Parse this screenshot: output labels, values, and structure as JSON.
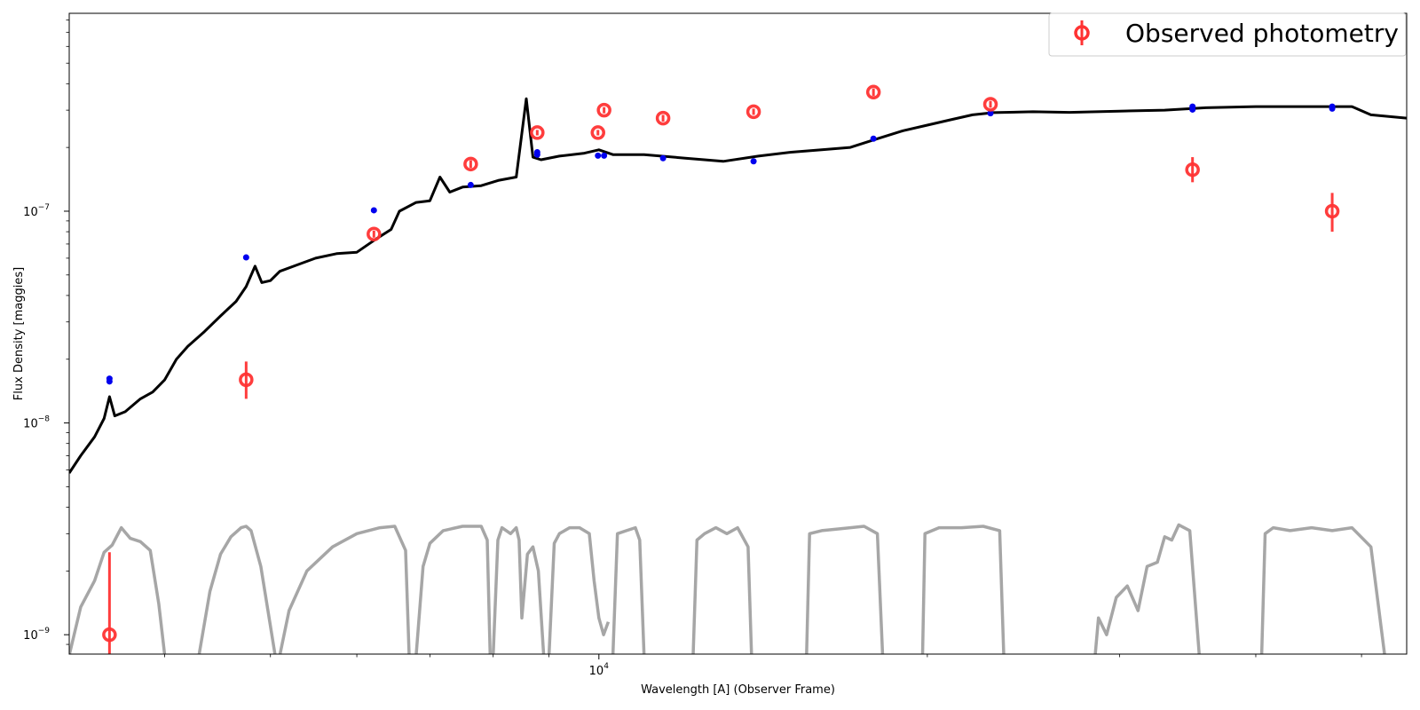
{
  "chart_data": {
    "type": "scatter",
    "xlabel": "Wavelength [A] (Observer Frame)",
    "ylabel": "Flux Density [maggies]",
    "xscale": "log",
    "yscale": "log",
    "xlim": [
      3270,
      55000
    ],
    "ylim": [
      8.1e-10,
      8.6e-07
    ],
    "x_major_ticks": [
      {
        "value": 10000,
        "base": "10",
        "exp": "4"
      }
    ],
    "y_major_ticks": [
      {
        "value": 1e-09,
        "base": "10",
        "exp": "−9"
      },
      {
        "value": 1e-08,
        "base": "10",
        "exp": "−8"
      },
      {
        "value": 1e-07,
        "base": "10",
        "exp": "−7"
      }
    ],
    "legend": {
      "location": "upper right",
      "entries": [
        "Observed photometry"
      ]
    },
    "colors": {
      "observed": "#ff3333",
      "model": "#0000ee",
      "spectrum": "#000000",
      "filters": "#a6a6a6"
    },
    "series": [
      {
        "name": "Observed photometry",
        "marker": "open-circle",
        "points": [
          {
            "x": 3560,
            "y": 1e-09,
            "ylo": 6e-10,
            "yhi": 2.45e-09
          },
          {
            "x": 4750,
            "y": 1.6e-08,
            "ylo": 1.3e-08,
            "yhi": 1.95e-08
          },
          {
            "x": 6220,
            "y": 7.8e-08,
            "ylo": 7.5e-08,
            "yhi": 8.1e-08
          },
          {
            "x": 7630,
            "y": 1.67e-07,
            "ylo": 1.6e-07,
            "yhi": 1.74e-07
          },
          {
            "x": 8780,
            "y": 2.35e-07,
            "ylo": 2.28e-07,
            "yhi": 2.42e-07
          },
          {
            "x": 9980,
            "y": 2.35e-07,
            "ylo": 2.28e-07,
            "yhi": 2.42e-07
          },
          {
            "x": 10110,
            "y": 3e-07,
            "ylo": 2.9e-07,
            "yhi": 3.1e-07
          },
          {
            "x": 11450,
            "y": 2.75e-07,
            "ylo": 2.65e-07,
            "yhi": 2.85e-07
          },
          {
            "x": 13860,
            "y": 2.95e-07,
            "ylo": 2.85e-07,
            "yhi": 3.05e-07
          },
          {
            "x": 17850,
            "y": 3.65e-07,
            "ylo": 3.5e-07,
            "yhi": 3.8e-07
          },
          {
            "x": 22850,
            "y": 3.2e-07,
            "ylo": 3.08e-07,
            "yhi": 3.32e-07
          },
          {
            "x": 35000,
            "y": 1.57e-07,
            "ylo": 1.37e-07,
            "yhi": 1.8e-07
          },
          {
            "x": 47000,
            "y": 1e-07,
            "ylo": 8e-08,
            "yhi": 1.22e-07
          }
        ]
      },
      {
        "name": "",
        "marker": "filled-dot",
        "points": [
          {
            "x": 3560,
            "y": 1.57e-08
          },
          {
            "x": 3560,
            "y": 1.62e-08
          },
          {
            "x": 4750,
            "y": 6.05e-08
          },
          {
            "x": 6220,
            "y": 1.01e-07
          },
          {
            "x": 7630,
            "y": 1.33e-07
          },
          {
            "x": 8780,
            "y": 1.85e-07
          },
          {
            "x": 8780,
            "y": 1.9e-07
          },
          {
            "x": 9980,
            "y": 1.83e-07
          },
          {
            "x": 10110,
            "y": 1.83e-07
          },
          {
            "x": 11450,
            "y": 1.78e-07
          },
          {
            "x": 13860,
            "y": 1.72e-07
          },
          {
            "x": 17850,
            "y": 2.2e-07
          },
          {
            "x": 22850,
            "y": 2.9e-07
          },
          {
            "x": 35000,
            "y": 3.02e-07
          },
          {
            "x": 35000,
            "y": 3.12e-07
          },
          {
            "x": 47000,
            "y": 3.05e-07
          },
          {
            "x": 47000,
            "y": 3.12e-07
          }
        ]
      },
      {
        "name": "",
        "marker": "line",
        "points": [
          {
            "x": 3270,
            "y": 5.8e-09
          },
          {
            "x": 3350,
            "y": 7e-09
          },
          {
            "x": 3450,
            "y": 8.6e-09
          },
          {
            "x": 3520,
            "y": 1.05e-08
          },
          {
            "x": 3560,
            "y": 1.33e-08
          },
          {
            "x": 3600,
            "y": 1.08e-08
          },
          {
            "x": 3680,
            "y": 1.13e-08
          },
          {
            "x": 3800,
            "y": 1.3e-08
          },
          {
            "x": 3900,
            "y": 1.4e-08
          },
          {
            "x": 4000,
            "y": 1.6e-08
          },
          {
            "x": 4100,
            "y": 2e-08
          },
          {
            "x": 4200,
            "y": 2.3e-08
          },
          {
            "x": 4350,
            "y": 2.7e-08
          },
          {
            "x": 4500,
            "y": 3.2e-08
          },
          {
            "x": 4650,
            "y": 3.75e-08
          },
          {
            "x": 4750,
            "y": 4.4e-08
          },
          {
            "x": 4840,
            "y": 5.5e-08
          },
          {
            "x": 4910,
            "y": 4.6e-08
          },
          {
            "x": 5000,
            "y": 4.7e-08
          },
          {
            "x": 5100,
            "y": 5.2e-08
          },
          {
            "x": 5300,
            "y": 5.6e-08
          },
          {
            "x": 5500,
            "y": 6e-08
          },
          {
            "x": 5750,
            "y": 6.3e-08
          },
          {
            "x": 6000,
            "y": 6.4e-08
          },
          {
            "x": 6250,
            "y": 7.4e-08
          },
          {
            "x": 6450,
            "y": 8.2e-08
          },
          {
            "x": 6563,
            "y": 1e-07
          },
          {
            "x": 6800,
            "y": 1.1e-07
          },
          {
            "x": 7000,
            "y": 1.12e-07
          },
          {
            "x": 7150,
            "y": 1.45e-07
          },
          {
            "x": 7300,
            "y": 1.23e-07
          },
          {
            "x": 7500,
            "y": 1.3e-07
          },
          {
            "x": 7800,
            "y": 1.32e-07
          },
          {
            "x": 8100,
            "y": 1.4e-07
          },
          {
            "x": 8400,
            "y": 1.45e-07
          },
          {
            "x": 8580,
            "y": 3.4e-07
          },
          {
            "x": 8700,
            "y": 1.8e-07
          },
          {
            "x": 8850,
            "y": 1.75e-07
          },
          {
            "x": 9200,
            "y": 1.82e-07
          },
          {
            "x": 9700,
            "y": 1.88e-07
          },
          {
            "x": 10000,
            "y": 1.95e-07
          },
          {
            "x": 10300,
            "y": 1.85e-07
          },
          {
            "x": 11000,
            "y": 1.85e-07
          },
          {
            "x": 12000,
            "y": 1.78e-07
          },
          {
            "x": 13000,
            "y": 1.72e-07
          },
          {
            "x": 14000,
            "y": 1.82e-07
          },
          {
            "x": 15000,
            "y": 1.9e-07
          },
          {
            "x": 16000,
            "y": 1.95e-07
          },
          {
            "x": 17000,
            "y": 2e-07
          },
          {
            "x": 18000,
            "y": 2.2e-07
          },
          {
            "x": 19000,
            "y": 2.4e-07
          },
          {
            "x": 20000,
            "y": 2.55e-07
          },
          {
            "x": 21000,
            "y": 2.7e-07
          },
          {
            "x": 22000,
            "y": 2.85e-07
          },
          {
            "x": 23000,
            "y": 2.92e-07
          },
          {
            "x": 25000,
            "y": 2.95e-07
          },
          {
            "x": 27000,
            "y": 2.93e-07
          },
          {
            "x": 30000,
            "y": 2.97e-07
          },
          {
            "x": 33000,
            "y": 3e-07
          },
          {
            "x": 36000,
            "y": 3.08e-07
          },
          {
            "x": 40000,
            "y": 3.12e-07
          },
          {
            "x": 45000,
            "y": 3.12e-07
          },
          {
            "x": 49000,
            "y": 3.12e-07
          },
          {
            "x": 51000,
            "y": 2.85e-07
          },
          {
            "x": 55000,
            "y": 2.75e-07
          }
        ]
      }
    ],
    "filter_curves": [
      {
        "x": [
          3270,
          3350,
          3450,
          3520,
          3580,
          3650,
          3720,
          3800,
          3880,
          3950,
          4000
        ],
        "y": [
          8e-10,
          1.35e-09,
          1.8e-09,
          2.45e-09,
          2.65e-09,
          3.2e-09,
          2.85e-09,
          2.75e-09,
          2.5e-09,
          1.4e-09,
          8e-10
        ]
      },
      {
        "x": [
          4300,
          4400,
          4500,
          4600,
          4700,
          4750,
          4800,
          4900,
          5000,
          5050
        ],
        "y": [
          8e-10,
          1.6e-09,
          2.4e-09,
          2.9e-09,
          3.2e-09,
          3.25e-09,
          3.1e-09,
          2.1e-09,
          1.1e-09,
          8e-10
        ]
      },
      {
        "x": [
          5100,
          5200,
          5400,
          5700,
          6000,
          6300,
          6500,
          6650,
          6700
        ],
        "y": [
          8e-10,
          1.3e-09,
          2e-09,
          2.6e-09,
          3e-09,
          3.2e-09,
          3.25e-09,
          2.5e-09,
          8e-10
        ]
      },
      {
        "x": [
          6800,
          6900,
          7000,
          7200,
          7500,
          7800,
          7900,
          7950
        ],
        "y": [
          8e-10,
          2.1e-09,
          2.7e-09,
          3.1e-09,
          3.25e-09,
          3.25e-09,
          2.8e-09,
          8e-10
        ]
      },
      {
        "x": [
          8000,
          8080,
          8150,
          8300,
          8400,
          8450,
          8500,
          8600,
          8700,
          8800,
          8900,
          8950
        ],
        "y": [
          8e-10,
          2.8e-09,
          3.2e-09,
          3e-09,
          3.2e-09,
          2.8e-09,
          1.2e-09,
          2.4e-09,
          2.6e-09,
          2e-09,
          8e-10,
          8e-10
        ]
      },
      {
        "x": [
          9000,
          9100,
          9200,
          9400,
          9600,
          9800,
          9900,
          10000,
          10100,
          10200
        ],
        "y": [
          8e-10,
          2.7e-09,
          3e-09,
          3.2e-09,
          3.2e-09,
          3e-09,
          1.8e-09,
          1.2e-09,
          1e-09,
          1.15e-09
        ]
      },
      {
        "x": [
          10300,
          10400,
          10600,
          10800,
          10900,
          11000
        ],
        "y": [
          8e-10,
          3e-09,
          3.1e-09,
          3.2e-09,
          2.8e-09,
          8e-10
        ]
      },
      {
        "x": [
          12200,
          12300,
          12500,
          12800,
          13100,
          13400,
          13700,
          13800
        ],
        "y": [
          8e-10,
          2.8e-09,
          3e-09,
          3.2e-09,
          3e-09,
          3.2e-09,
          2.6e-09,
          8e-10
        ]
      },
      {
        "x": [
          15500,
          15600,
          16000,
          16500,
          17000,
          17500,
          18000,
          18200
        ],
        "y": [
          8e-10,
          3e-09,
          3.1e-09,
          3.15e-09,
          3.2e-09,
          3.25e-09,
          3e-09,
          8e-10
        ]
      },
      {
        "x": [
          19800,
          19900,
          20500,
          21500,
          22500,
          23300,
          23500
        ],
        "y": [
          8e-10,
          3e-09,
          3.2e-09,
          3.2e-09,
          3.25e-09,
          3.1e-09,
          8e-10
        ]
      },
      {
        "x": [
          28500,
          28700,
          29200,
          29800,
          30500,
          31200,
          31800,
          32500,
          33000,
          33500,
          34000,
          34800,
          35500
        ],
        "y": [
          8e-10,
          1.2e-09,
          1e-09,
          1.5e-09,
          1.7e-09,
          1.3e-09,
          2.1e-09,
          2.2e-09,
          2.9e-09,
          2.8e-09,
          3.3e-09,
          3.1e-09,
          8e-10
        ]
      },
      {
        "x": [
          40500,
          40800,
          41500,
          43000,
          45000,
          47000,
          49000,
          51000,
          52500
        ],
        "y": [
          8e-10,
          3e-09,
          3.2e-09,
          3.1e-09,
          3.2e-09,
          3.1e-09,
          3.2e-09,
          2.6e-09,
          8e-10
        ]
      }
    ]
  }
}
